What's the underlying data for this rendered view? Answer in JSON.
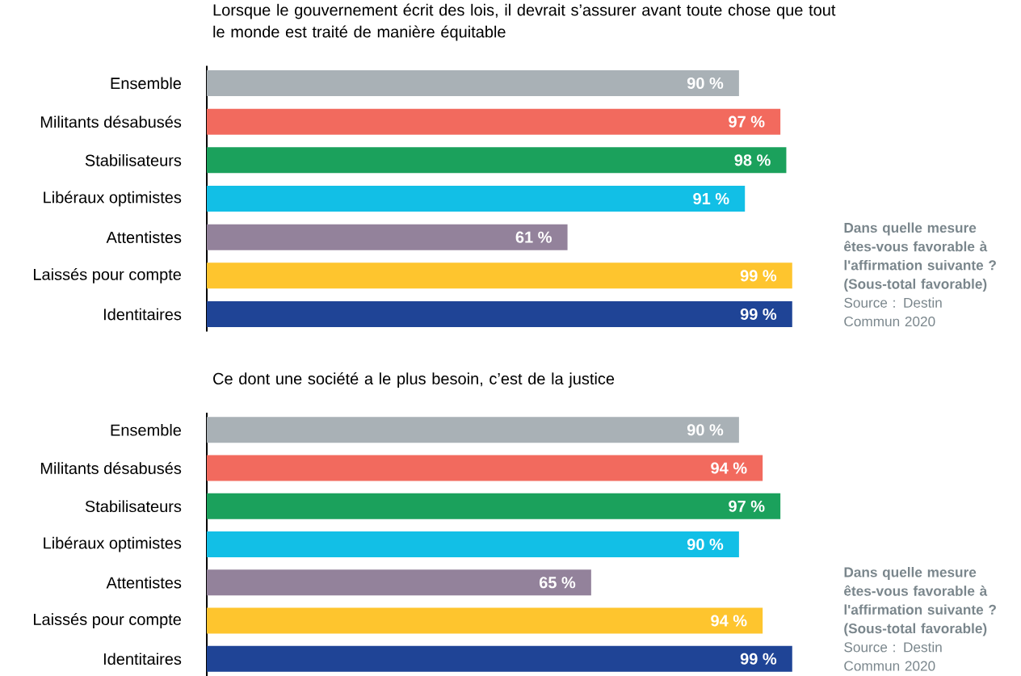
{
  "chart_data": [
    {
      "type": "bar",
      "orientation": "horizontal",
      "title": "Lorsque le gouvernement écrit des lois, il devrait s’assurer avant toute chose que tout le monde est traité de manière équitable",
      "categories": [
        "Ensemble",
        "Militants désabusés",
        "Stabilisateurs",
        "Libéraux optimistes",
        "Attentistes",
        "Laissés pour compte",
        "Identitaires"
      ],
      "values": [
        90,
        97,
        98,
        91,
        61,
        99,
        99
      ],
      "value_labels": [
        "90 %",
        "97 %",
        "98 %",
        "91 %",
        "61 %",
        "99 %",
        "99 %"
      ],
      "colors": [
        "#a9b1b6",
        "#f26a5e",
        "#1ba15c",
        "#12bfe6",
        "#93829b",
        "#fec52e",
        "#1f4496"
      ],
      "tick_labels": "y",
      "annotations": [
        "Dans quelle mesure êtes-vous favorable à l'affirmation suivante ? (Sous-total favorable)",
        "Source : Destin Commun 2020"
      ]
    },
    {
      "type": "bar",
      "orientation": "horizontal",
      "title": "Ce dont une société a le plus besoin, c’est de la justice",
      "categories": [
        "Ensemble",
        "Militants désabusés",
        "Stabilisateurs",
        "Libéraux optimistes",
        "Attentistes",
        "Laissés pour compte",
        "Identitaires"
      ],
      "values": [
        90,
        94,
        97,
        90,
        65,
        94,
        99
      ],
      "value_labels": [
        "90 %",
        "94 %",
        "97 %",
        "90 %",
        "65 %",
        "94 %",
        "99 %"
      ],
      "colors": [
        "#a9b1b6",
        "#f26a5e",
        "#1ba15c",
        "#12bfe6",
        "#93829b",
        "#fec52e",
        "#1f4496"
      ],
      "tick_labels": "y",
      "annotations": [
        "Dans quelle mesure êtes-vous favorable à l'affirmation suivante ? (Sous-total favorable)",
        "Source : Destin Commun 2020"
      ]
    }
  ]
}
